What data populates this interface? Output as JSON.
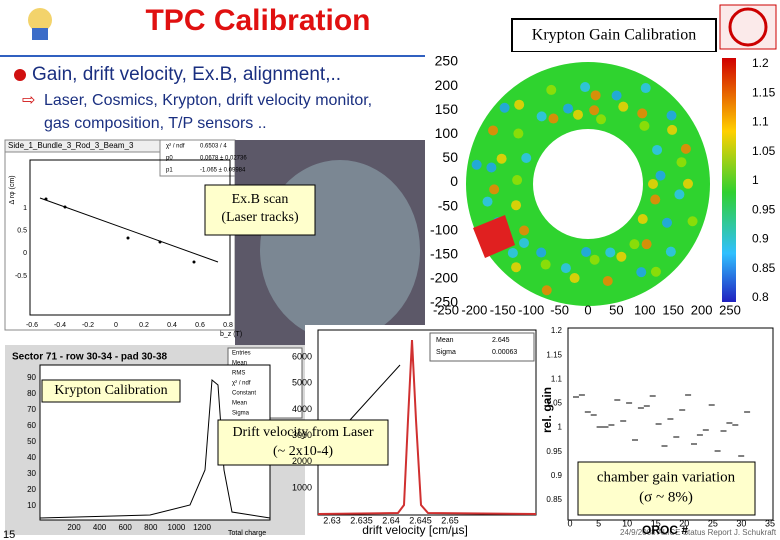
{
  "header": {
    "title": "TPC Calibration",
    "box": "Krypton Gain Calibration"
  },
  "bullets": {
    "main": "Gain, drift velocity, Ex.B, alignment,..",
    "sub1": "Laser, Cosmics, Krypton, drift velocity monitor,",
    "sub2": "gas composition, T/P sensors .."
  },
  "labels": {
    "exb1": "Ex.B scan",
    "exb2": "(Laser tracks)",
    "krypton": "Krypton Calibration",
    "drift1": "Drift velocity from Laser",
    "drift2": "(~ 2x10-4)",
    "gain1": "chamber gain variation",
    "gain2": "(σ ~ 8%)"
  },
  "kr_map": {
    "yticks": [
      "250",
      "200",
      "150",
      "100",
      "50",
      "0",
      "-50",
      "-100",
      "-150",
      "-200",
      "-250"
    ],
    "xticks": [
      "-250",
      "-200",
      "-150",
      "-100",
      "-50",
      "0",
      "50",
      "100",
      "150",
      "200",
      "250"
    ],
    "scale": [
      "1.2",
      "1.15",
      "1.1",
      "1.05",
      "1",
      "0.95",
      "0.9",
      "0.85",
      "0.8"
    ]
  },
  "exb_plot": {
    "title": "Side_1_Bundle_3_Rod_3_Beam_3",
    "stats": [
      "χ² / ndf",
      "p0",
      "p1"
    ],
    "stat_values": [
      "0.6503 / 4",
      "0.0678 ± 0.02736",
      "-1.065 ± 0.09984"
    ],
    "yticks": [
      "1",
      "0.5",
      "0",
      "-0.5"
    ],
    "xticks": [
      "-0.6",
      "-0.4",
      "-0.2",
      "0",
      "0.2",
      "0.4",
      "0.6",
      "0.8"
    ],
    "ylabel": "Δ rφ (cm)",
    "xlabel": "b_z (T)"
  },
  "kr_hist": {
    "title": "Sector 71 - row 30-34 - pad 30-38",
    "stats": [
      "Entries",
      "Mean",
      "RMS",
      "χ² / ndf",
      "Constant",
      "Mean",
      "Sigma"
    ],
    "yticks": [
      "90",
      "80",
      "70",
      "60",
      "50",
      "40",
      "30",
      "20",
      "10"
    ],
    "xticks": [
      "200",
      "400",
      "600",
      "800",
      "1000",
      "1200"
    ],
    "xlabel": "Total charge"
  },
  "drift_plot": {
    "stats": [
      "Mean",
      "Sigma"
    ],
    "stat_values": [
      "2.645",
      "0.00063"
    ],
    "yticks": [
      "6000",
      "5000",
      "4000",
      "3000",
      "2000",
      "1000"
    ],
    "xticks": [
      "2.63",
      "2.635",
      "2.64",
      "2.645",
      "2.65"
    ],
    "xlabel": "drift velocity [cm/µs]"
  },
  "gain_plot": {
    "ylabel": "rel. gain",
    "yticks": [
      "1.2",
      "1.15",
      "1.1",
      "1.05",
      "1",
      "0.95",
      "0.9",
      "0.85"
    ],
    "xticks": [
      "0",
      "5",
      "10",
      "15",
      "20",
      "25",
      "30",
      "35"
    ],
    "xlabel": "OROC #"
  },
  "footer": {
    "page": "15",
    "note": "24/9/2008   ALICE Status Report J. Schukraft"
  }
}
